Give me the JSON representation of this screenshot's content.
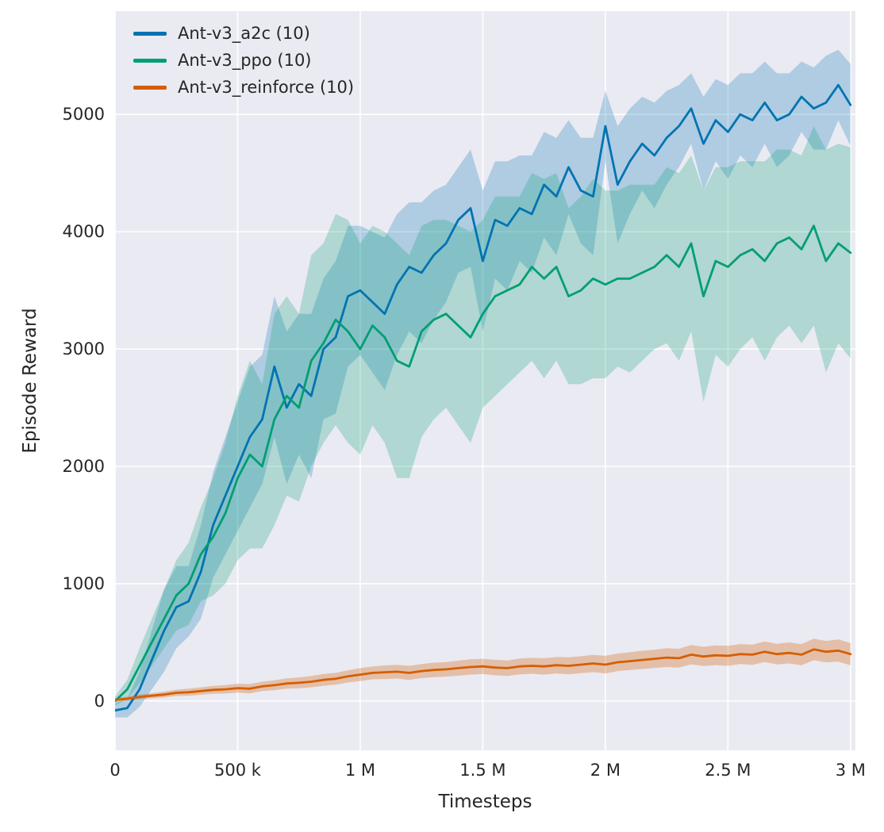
{
  "colors": {
    "plot_background": "#eaeaf2",
    "grid": "#ffffff",
    "text": "#262626",
    "a2c": "#0173b2",
    "ppo": "#029e73",
    "reinforce": "#d55e00"
  },
  "chart_data": {
    "type": "line",
    "title": "",
    "xlabel": "Timesteps",
    "ylabel": "Episode Reward",
    "xlim": [
      0,
      3020000
    ],
    "ylim": [
      -420,
      5880
    ],
    "x_ticks": [
      0,
      500000,
      1000000,
      1500000,
      2000000,
      2500000,
      3000000
    ],
    "x_tick_labels": [
      "0",
      "500 k",
      "1 M",
      "1.5 M",
      "2 M",
      "2.5 M",
      "3 M"
    ],
    "y_ticks": [
      0,
      1000,
      2000,
      3000,
      4000,
      5000
    ],
    "y_tick_labels": [
      "0",
      "1000",
      "2000",
      "3000",
      "4000",
      "5000"
    ],
    "grid": true,
    "legend_position": "upper left",
    "x_definition": {
      "start": 0,
      "step": 50000,
      "count": 61
    },
    "series": [
      {
        "name": "Ant-v3_a2c (10)",
        "color": "#0173b2",
        "band_opacity": 0.25,
        "mean": [
          -80,
          -60,
          100,
          350,
          600,
          800,
          850,
          1100,
          1500,
          1750,
          2000,
          2250,
          2400,
          2850,
          2500,
          2700,
          2600,
          3000,
          3100,
          3450,
          3500,
          3400,
          3300,
          3550,
          3700,
          3650,
          3800,
          3900,
          4100,
          4200,
          3750,
          4100,
          4050,
          4200,
          4150,
          4400,
          4300,
          4550,
          4350,
          4300,
          4900,
          4400,
          4600,
          4750,
          4650,
          4800,
          4900,
          5050,
          4750,
          4950,
          4850,
          5000,
          4950,
          5100,
          4950,
          5000,
          5150,
          5050,
          5100,
          5250,
          5080
        ],
        "spread": [
          60,
          80,
          150,
          250,
          350,
          350,
          300,
          400,
          450,
          500,
          550,
          600,
          550,
          600,
          650,
          600,
          700,
          600,
          650,
          600,
          550,
          600,
          650,
          600,
          550,
          600,
          550,
          500,
          450,
          500,
          600,
          500,
          550,
          450,
          500,
          450,
          500,
          400,
          450,
          500,
          300,
          500,
          450,
          400,
          450,
          400,
          350,
          300,
          400,
          350,
          400,
          350,
          400,
          350,
          400,
          350,
          300,
          350,
          400,
          300,
          350
        ]
      },
      {
        "name": "Ant-v3_ppo (10)",
        "color": "#029e73",
        "band_opacity": 0.25,
        "mean": [
          0,
          100,
          300,
          500,
          700,
          900,
          1000,
          1250,
          1400,
          1600,
          1900,
          2100,
          2000,
          2400,
          2600,
          2500,
          2900,
          3050,
          3250,
          3150,
          3000,
          3200,
          3100,
          2900,
          2850,
          3150,
          3250,
          3300,
          3200,
          3100,
          3300,
          3450,
          3500,
          3550,
          3700,
          3600,
          3700,
          3450,
          3500,
          3600,
          3550,
          3600,
          3600,
          3650,
          3700,
          3800,
          3700,
          3900,
          3450,
          3750,
          3700,
          3800,
          3850,
          3750,
          3900,
          3950,
          3850,
          4050,
          3750,
          3900,
          3820
        ],
        "spread": [
          40,
          80,
          150,
          200,
          250,
          300,
          350,
          400,
          500,
          600,
          700,
          800,
          700,
          900,
          850,
          800,
          900,
          850,
          900,
          950,
          900,
          850,
          900,
          1000,
          950,
          900,
          850,
          800,
          850,
          900,
          800,
          850,
          800,
          750,
          800,
          850,
          800,
          750,
          800,
          850,
          800,
          750,
          800,
          750,
          700,
          750,
          800,
          750,
          900,
          800,
          850,
          800,
          750,
          850,
          800,
          750,
          800,
          850,
          950,
          850,
          900
        ]
      },
      {
        "name": "Ant-v3_reinforce (10)",
        "color": "#d55e00",
        "band_opacity": 0.3,
        "mean": [
          10,
          20,
          35,
          45,
          55,
          70,
          75,
          85,
          95,
          100,
          110,
          105,
          125,
          135,
          150,
          155,
          165,
          180,
          190,
          210,
          225,
          240,
          245,
          250,
          240,
          255,
          265,
          270,
          280,
          290,
          295,
          285,
          280,
          295,
          300,
          295,
          305,
          300,
          310,
          320,
          310,
          330,
          340,
          350,
          360,
          370,
          365,
          395,
          380,
          390,
          385,
          400,
          395,
          420,
          400,
          410,
          395,
          440,
          420,
          430,
          400
        ],
        "spread": [
          15,
          18,
          20,
          22,
          25,
          27,
          30,
          32,
          34,
          36,
          38,
          40,
          40,
          42,
          44,
          46,
          48,
          50,
          50,
          52,
          55,
          55,
          58,
          58,
          60,
          60,
          62,
          62,
          64,
          65,
          65,
          66,
          66,
          68,
          68,
          70,
          70,
          72,
          72,
          74,
          75,
          75,
          76,
          78,
          78,
          80,
          80,
          82,
          82,
          84,
          85,
          85,
          86,
          88,
          88,
          90,
          90,
          92,
          92,
          94,
          95
        ]
      }
    ]
  }
}
